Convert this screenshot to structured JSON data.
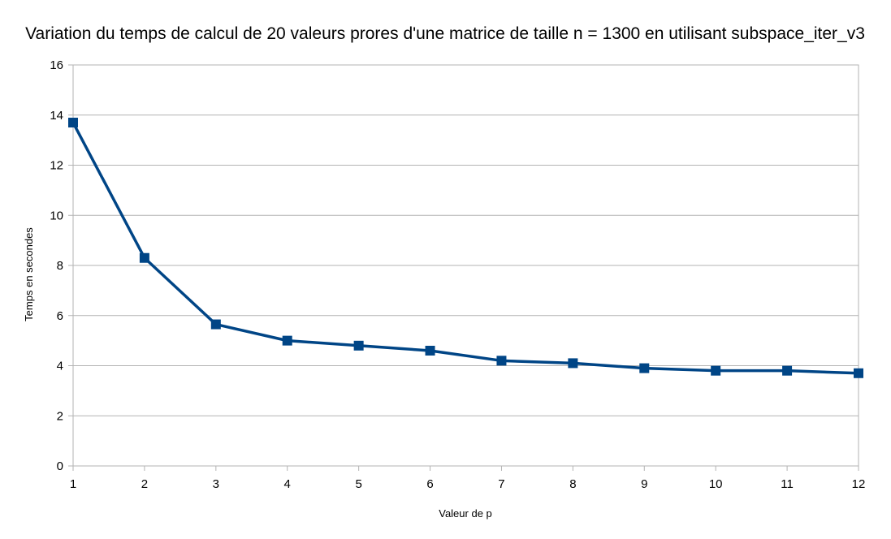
{
  "chart_data": {
    "type": "line",
    "title": "Variation du temps de calcul de 20 valeurs prores d'une matrice de taille n = 1300 en utilisant subspace_iter_v3",
    "xlabel": "Valeur de p",
    "ylabel": "Temps en secondes",
    "x": [
      1,
      2,
      3,
      4,
      5,
      6,
      7,
      8,
      9,
      10,
      11,
      12
    ],
    "x_tick_labels": [
      "1",
      "2",
      "3",
      "4",
      "5",
      "6",
      "7",
      "8",
      "9",
      "10",
      "11",
      "12"
    ],
    "xlim": [
      1,
      12
    ],
    "ylim": [
      0,
      16
    ],
    "y_ticks": [
      0,
      2,
      4,
      6,
      8,
      10,
      12,
      14,
      16
    ],
    "y_tick_labels": [
      "0",
      "2",
      "4",
      "6",
      "8",
      "10",
      "12",
      "14",
      "16"
    ],
    "grid": true,
    "legend": "none",
    "series": [
      {
        "values": [
          13.7,
          8.3,
          5.65,
          5.0,
          4.8,
          4.6,
          4.2,
          4.1,
          3.9,
          3.8,
          3.8,
          3.7
        ],
        "color": "#004586",
        "marker": "square"
      }
    ],
    "colors": {
      "series": "#004586",
      "grid": "#b3b3b3",
      "frame": "#b3b3b3",
      "text": "#000000"
    }
  }
}
